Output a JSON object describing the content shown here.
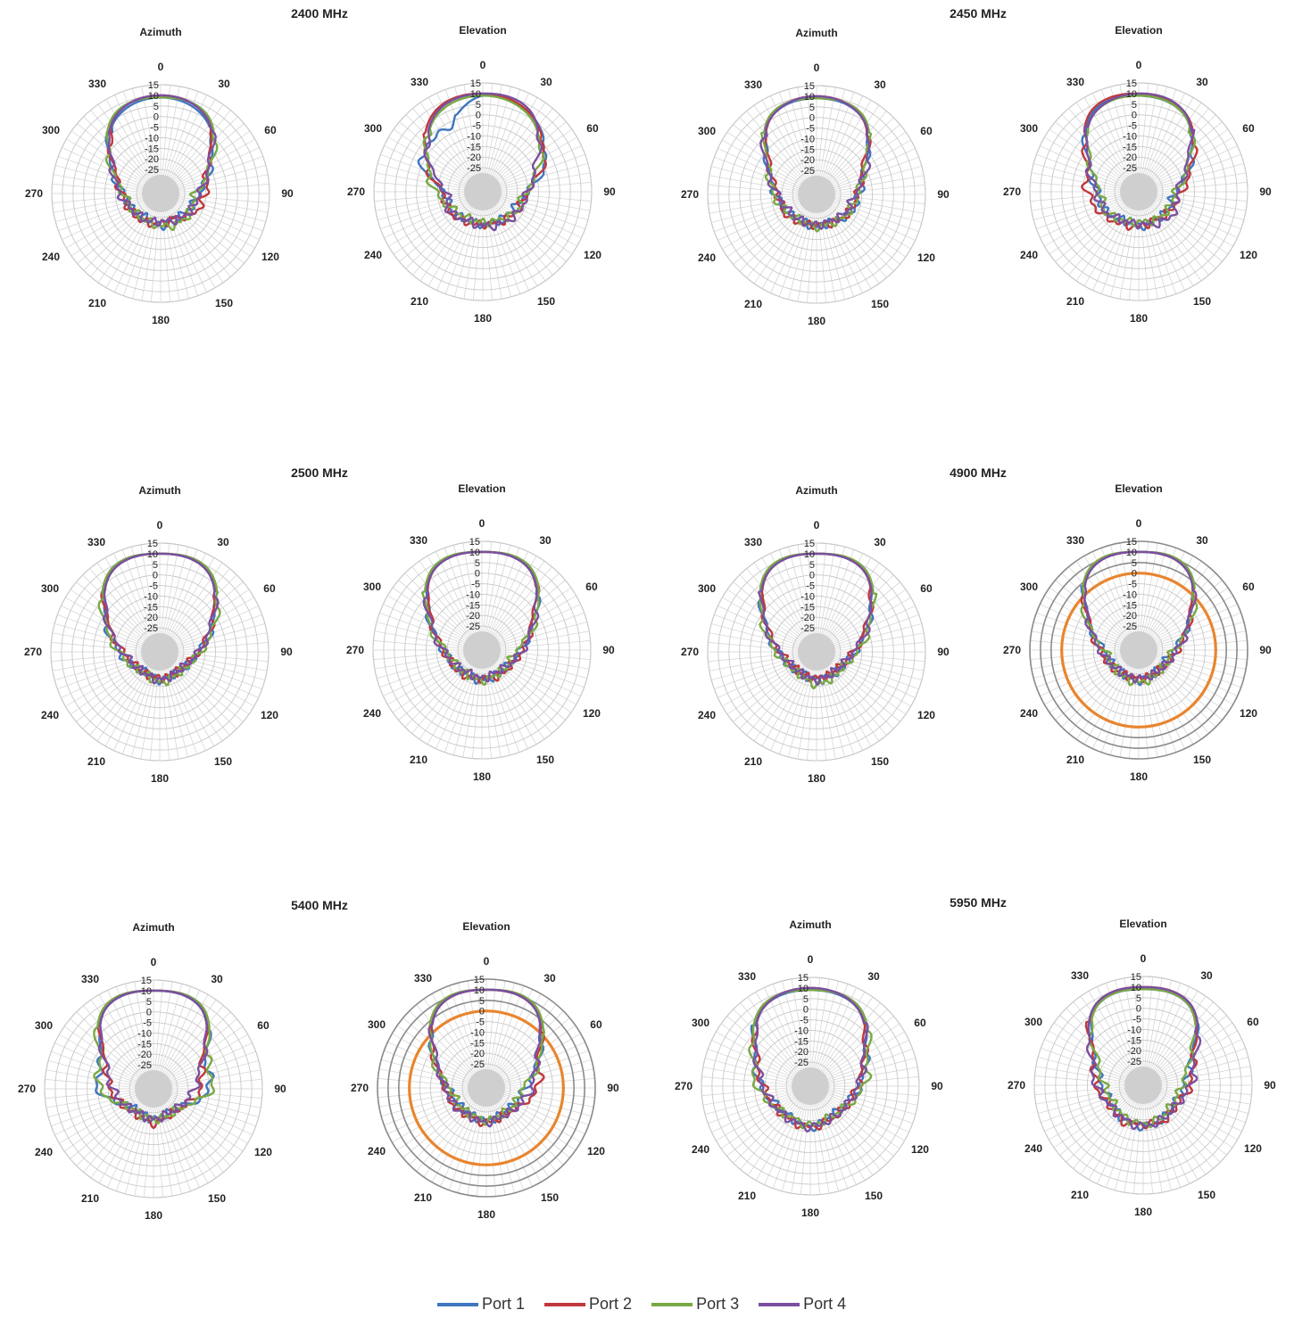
{
  "chart_data": {
    "type": "polar",
    "radial_ticks": [
      "15",
      "10",
      "5",
      "0",
      "-5",
      "-10",
      "-15",
      "-20",
      "-25"
    ],
    "angle_ticks": [
      "0",
      "30",
      "60",
      "90",
      "120",
      "150",
      "180",
      "210",
      "240",
      "270",
      "300",
      "330"
    ],
    "rlim": [
      -30,
      15
    ],
    "legend_position": "bottom",
    "series_names": [
      "Port 1",
      "Port 2",
      "Port 3",
      "Port 4"
    ],
    "series_colors": [
      "#3f76bf",
      "#c0383b",
      "#79a944",
      "#7a4fa0"
    ],
    "reference_color": "#e8852f",
    "panels": [
      {
        "frequency": "2400 MHz",
        "subtitle": "Azimuth",
        "series": [
          {
            "name": "Port 1",
            "values_by_30deg": [
              9,
              5,
              -9,
              -18,
              -21,
              -23,
              -21,
              -23,
              -21,
              -19,
              -9,
              5
            ]
          },
          {
            "name": "Port 2",
            "values_by_30deg": [
              10,
              6,
              -11,
              -15,
              -18,
              -23,
              -22,
              -21,
              -20,
              -18,
              -11,
              6
            ]
          },
          {
            "name": "Port 3",
            "values_by_30deg": [
              9,
              7,
              -9,
              -20,
              -20,
              -20,
              -21,
              -22,
              -21,
              -19,
              -9,
              7
            ]
          },
          {
            "name": "Port 4",
            "values_by_30deg": [
              10,
              6,
              -10,
              -18,
              -20,
              -22,
              -23,
              -22,
              -21,
              -17,
              -10,
              6
            ]
          }
        ]
      },
      {
        "frequency": "",
        "subtitle": "Elevation",
        "series": [
          {
            "name": "Port 1",
            "values_by_30deg": [
              9,
              7,
              -2,
              -15,
              -20,
              -21,
              -21,
              -21,
              -19,
              -18,
              -3,
              -2
            ]
          },
          {
            "name": "Port 2",
            "values_by_30deg": [
              10,
              7,
              -3,
              -15,
              -18,
              -20,
              -21,
              -20,
              -18,
              -17,
              -5,
              8
            ]
          },
          {
            "name": "Port 3",
            "values_by_30deg": [
              9,
              6,
              -5,
              -16,
              -18,
              -21,
              -22,
              -22,
              -20,
              -14,
              -6,
              6
            ]
          },
          {
            "name": "Port 4",
            "values_by_30deg": [
              10,
              8,
              -7,
              -15,
              -17,
              -19,
              -20,
              -21,
              -18,
              -19,
              -7,
              7
            ]
          }
        ]
      },
      {
        "frequency": "2450 MHz",
        "subtitle": "Azimuth",
        "series": [
          {
            "name": "Port 1",
            "values_by_30deg": [
              9,
              6,
              -10,
              -16,
              -18,
              -22,
              -21,
              -22,
              -20,
              -17,
              -10,
              6
            ]
          },
          {
            "name": "Port 2",
            "values_by_30deg": [
              10,
              6,
              -11,
              -17,
              -19,
              -21,
              -22,
              -21,
              -19,
              -18,
              -11,
              6
            ]
          },
          {
            "name": "Port 3",
            "values_by_30deg": [
              9,
              7,
              -10,
              -17,
              -19,
              -21,
              -21,
              -22,
              -20,
              -16,
              -10,
              7
            ]
          },
          {
            "name": "Port 4",
            "values_by_30deg": [
              10,
              6,
              -9,
              -18,
              -20,
              -22,
              -22,
              -22,
              -21,
              -18,
              -9,
              6
            ]
          }
        ]
      },
      {
        "frequency": "",
        "subtitle": "Elevation",
        "series": [
          {
            "name": "Port 1",
            "values_by_30deg": [
              9,
              6,
              -8,
              -19,
              -20,
              -21,
              -20,
              -21,
              -18,
              -17,
              -9,
              7
            ]
          },
          {
            "name": "Port 2",
            "values_by_30deg": [
              10,
              7,
              -7,
              -16,
              -19,
              -21,
              -20,
              -19,
              -16,
              -12,
              -8,
              8
            ]
          },
          {
            "name": "Port 3",
            "values_by_30deg": [
              9,
              6,
              -9,
              -19,
              -20,
              -21,
              -22,
              -21,
              -18,
              -18,
              -10,
              6
            ]
          },
          {
            "name": "Port 4",
            "values_by_30deg": [
              10,
              7,
              -10,
              -18,
              -17,
              -19,
              -21,
              -21,
              -18,
              -16,
              -9,
              6
            ]
          }
        ]
      },
      {
        "frequency": "2500 MHz",
        "subtitle": "Azimuth",
        "series": [
          {
            "name": "Port 1",
            "values_by_30deg": [
              10,
              8,
              -7,
              -18,
              -22,
              -24,
              -23,
              -25,
              -22,
              -17,
              -7,
              8
            ]
          },
          {
            "name": "Port 2",
            "values_by_30deg": [
              10,
              8,
              -8,
              -18,
              -23,
              -24,
              -24,
              -24,
              -23,
              -19,
              -8,
              8
            ]
          },
          {
            "name": "Port 3",
            "values_by_30deg": [
              10,
              9,
              -6,
              -17,
              -22,
              -23,
              -22,
              -24,
              -22,
              -17,
              -6,
              9
            ]
          },
          {
            "name": "Port 4",
            "values_by_30deg": [
              10,
              8,
              -8,
              -18,
              -23,
              -24,
              -23,
              -24,
              -23,
              -19,
              -8,
              8
            ]
          }
        ]
      },
      {
        "frequency": "",
        "subtitle": "Elevation",
        "series": [
          {
            "name": "Port 1",
            "values_by_30deg": [
              10,
              8,
              -8,
              -18,
              -22,
              -23,
              -22,
              -23,
              -21,
              -18,
              -8,
              8
            ]
          },
          {
            "name": "Port 2",
            "values_by_30deg": [
              10,
              8,
              -9,
              -17,
              -21,
              -22,
              -23,
              -22,
              -21,
              -18,
              -9,
              8
            ]
          },
          {
            "name": "Port 3",
            "values_by_30deg": [
              10,
              9,
              -7,
              -20,
              -22,
              -23,
              -22,
              -23,
              -22,
              -19,
              -7,
              9
            ]
          },
          {
            "name": "Port 4",
            "values_by_30deg": [
              10,
              8,
              -8,
              -17,
              -22,
              -24,
              -23,
              -24,
              -22,
              -18,
              -8,
              8
            ]
          }
        ]
      },
      {
        "frequency": "4900 MHz",
        "subtitle": "Azimuth",
        "series": [
          {
            "name": "Port 1",
            "values_by_30deg": [
              10,
              8,
              -8,
              -18,
              -22,
              -23,
              -23,
              -24,
              -22,
              -18,
              -8,
              8
            ]
          },
          {
            "name": "Port 2",
            "values_by_30deg": [
              10,
              8,
              -9,
              -19,
              -23,
              -24,
              -24,
              -24,
              -23,
              -19,
              -9,
              8
            ]
          },
          {
            "name": "Port 3",
            "values_by_30deg": [
              10,
              9,
              -7,
              -17,
              -22,
              -22,
              -21,
              -23,
              -22,
              -17,
              -7,
              9
            ]
          },
          {
            "name": "Port 4",
            "values_by_30deg": [
              10,
              8,
              -8,
              -19,
              -23,
              -24,
              -23,
              -24,
              -23,
              -19,
              -8,
              8
            ]
          }
        ]
      },
      {
        "frequency": "",
        "subtitle": "Elevation",
        "reference_level": 0,
        "series": [
          {
            "name": "Port 1",
            "values_by_30deg": [
              10,
              8,
              -9,
              -20,
              -23,
              -23,
              -22,
              -23,
              -22,
              -20,
              -9,
              8
            ]
          },
          {
            "name": "Port 2",
            "values_by_30deg": [
              10,
              8,
              -9,
              -18,
              -22,
              -23,
              -23,
              -23,
              -21,
              -18,
              -9,
              8
            ]
          },
          {
            "name": "Port 3",
            "values_by_30deg": [
              10,
              9,
              -8,
              -20,
              -22,
              -22,
              -21,
              -22,
              -22,
              -20,
              -8,
              9
            ]
          },
          {
            "name": "Port 4",
            "values_by_30deg": [
              10,
              8,
              -9,
              -18,
              -22,
              -23,
              -23,
              -23,
              -22,
              -18,
              -9,
              8
            ]
          }
        ]
      },
      {
        "frequency": "5400 MHz",
        "subtitle": "Azimuth",
        "series": [
          {
            "name": "Port 1",
            "values_by_30deg": [
              10,
              8,
              -8,
              -10,
              -20,
              -23,
              -22,
              -24,
              -21,
              -10,
              -8,
              8
            ]
          },
          {
            "name": "Port 2",
            "values_by_30deg": [
              10,
              8,
              -10,
              -14,
              -20,
              -22,
              -20,
              -22,
              -20,
              -16,
              -10,
              8
            ]
          },
          {
            "name": "Port 3",
            "values_by_30deg": [
              10,
              9,
              -7,
              -9,
              -20,
              -22,
              -22,
              -23,
              -21,
              -11,
              -7,
              9
            ]
          },
          {
            "name": "Port 4",
            "values_by_30deg": [
              10,
              8,
              -10,
              -17,
              -21,
              -23,
              -22,
              -23,
              -21,
              -17,
              -10,
              8
            ]
          }
        ]
      },
      {
        "frequency": "",
        "subtitle": "Elevation",
        "reference_level": 0,
        "series": [
          {
            "name": "Port 1",
            "values_by_30deg": [
              10,
              8,
              -8,
              -18,
              -21,
              -22,
              -21,
              -22,
              -21,
              -18,
              -8,
              8
            ]
          },
          {
            "name": "Port 2",
            "values_by_30deg": [
              10,
              8,
              -8,
              -12,
              -19,
              -21,
              -20,
              -21,
              -19,
              -17,
              -8,
              8
            ]
          },
          {
            "name": "Port 3",
            "values_by_30deg": [
              10,
              9,
              -7,
              -19,
              -21,
              -22,
              -21,
              -22,
              -21,
              -19,
              -7,
              9
            ]
          },
          {
            "name": "Port 4",
            "values_by_30deg": [
              10,
              8,
              -9,
              -15,
              -19,
              -21,
              -20,
              -21,
              -19,
              -17,
              -9,
              8
            ]
          }
        ]
      },
      {
        "frequency": "5950 MHz",
        "subtitle": "Azimuth",
        "series": [
          {
            "name": "Port 1",
            "values_by_30deg": [
              9,
              7,
              -6,
              -13,
              -18,
              -19,
              -17,
              -19,
              -18,
              -13,
              -6,
              7
            ]
          },
          {
            "name": "Port 2",
            "values_by_30deg": [
              10,
              7,
              -7,
              -14,
              -17,
              -18,
              -17,
              -18,
              -17,
              -14,
              -7,
              7
            ]
          },
          {
            "name": "Port 3",
            "values_by_30deg": [
              9,
              8,
              -5,
              -11,
              -17,
              -19,
              -18,
              -19,
              -17,
              -11,
              -5,
              8
            ]
          },
          {
            "name": "Port 4",
            "values_by_30deg": [
              10,
              7,
              -7,
              -14,
              -17,
              -18,
              -17,
              -18,
              -17,
              -14,
              -7,
              7
            ]
          }
        ]
      },
      {
        "frequency": "",
        "subtitle": "Elevation",
        "series": [
          {
            "name": "Port 1",
            "values_by_30deg": [
              9,
              7,
              -10,
              -17,
              -19,
              -18,
              -17,
              -18,
              -19,
              -17,
              -10,
              7
            ]
          },
          {
            "name": "Port 2",
            "values_by_30deg": [
              10,
              8,
              -9,
              -14,
              -18,
              -17,
              -18,
              -17,
              -18,
              -14,
              -9,
              8
            ]
          },
          {
            "name": "Port 3",
            "values_by_30deg": [
              9,
              7,
              -11,
              -18,
              -20,
              -19,
              -18,
              -19,
              -20,
              -18,
              -11,
              7
            ]
          },
          {
            "name": "Port 4",
            "values_by_30deg": [
              10,
              8,
              -8,
              -14,
              -18,
              -18,
              -17,
              -18,
              -18,
              -14,
              -8,
              8
            ]
          }
        ]
      }
    ]
  }
}
